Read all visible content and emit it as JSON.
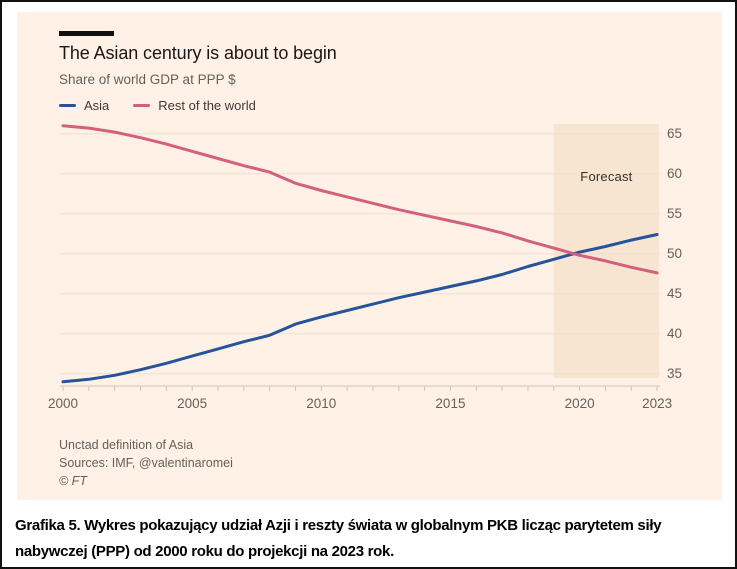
{
  "figure": {
    "caption": "Grafika 5. Wykres pokazujący udział Azji i reszty świata w globalnym PKB licząc parytetem siły nabywczej (PPP) od 2000 roku do projekcji na 2023 rok."
  },
  "chart_data": {
    "type": "line",
    "title": "The Asian century is about to begin",
    "subtitle": "Share of world GDP at PPP $",
    "x": [
      2000,
      2001,
      2002,
      2003,
      2004,
      2005,
      2006,
      2007,
      2008,
      2009,
      2010,
      2011,
      2012,
      2013,
      2014,
      2015,
      2016,
      2017,
      2018,
      2019,
      2020,
      2021,
      2022,
      2023
    ],
    "series": [
      {
        "name": "Asia",
        "color": "#25549B",
        "values": [
          34.0,
          34.3,
          34.8,
          35.5,
          36.3,
          37.2,
          38.1,
          39.0,
          39.8,
          41.2,
          42.1,
          42.9,
          43.7,
          44.5,
          45.2,
          45.9,
          46.6,
          47.4,
          48.4,
          49.3,
          50.2,
          50.9,
          51.7,
          52.4
        ]
      },
      {
        "name": "Rest of the world",
        "color": "#D5607C",
        "values": [
          66.0,
          65.7,
          65.2,
          64.5,
          63.7,
          62.8,
          61.9,
          61.0,
          60.2,
          58.8,
          57.9,
          57.1,
          56.3,
          55.5,
          54.8,
          54.1,
          53.4,
          52.6,
          51.6,
          50.7,
          49.8,
          49.1,
          48.3,
          47.6
        ]
      }
    ],
    "ylim": [
      33.5,
      66.5
    ],
    "yticks": [
      35,
      40,
      45,
      50,
      55,
      60,
      65
    ],
    "xticks": [
      2000,
      2005,
      2010,
      2015,
      2020,
      2023
    ],
    "grid": "horizontal",
    "legend_position": "top-left",
    "y_axis_side": "right",
    "forecast": {
      "label": "Forecast",
      "start": 2019
    },
    "footnotes": [
      "Unctad definition of Asia",
      "Sources: IMF, @valentinaromei",
      "© FT"
    ],
    "colors": {
      "background": "#FFF1E5",
      "band": "#F8E5D1",
      "grid": "#EFE0D0",
      "axis": "#D3C4B4",
      "text_muted": "#66605B",
      "title": "#1A1817"
    }
  }
}
